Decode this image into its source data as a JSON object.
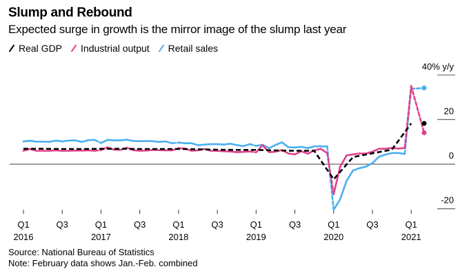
{
  "chart_data": {
    "type": "line",
    "title": "Slump and Rebound",
    "subtitle": "Expected surge in growth is the mirror image of the slump last year",
    "ylabel": "40% y/y",
    "ylim": [
      -20,
      40
    ],
    "yticks": [
      40,
      20,
      0,
      -20
    ],
    "ytick_labels": [
      "40% y/y",
      "20",
      "0",
      "-20"
    ],
    "xticks": [
      {
        "month": 0,
        "q": "Q1",
        "year": "2016"
      },
      {
        "month": 6,
        "q": "Q3",
        "year": ""
      },
      {
        "month": 12,
        "q": "Q1",
        "year": "2017"
      },
      {
        "month": 18,
        "q": "Q3",
        "year": ""
      },
      {
        "month": 24,
        "q": "Q1",
        "year": "2018"
      },
      {
        "month": 30,
        "q": "Q3",
        "year": ""
      },
      {
        "month": 36,
        "q": "Q1",
        "year": "2019"
      },
      {
        "month": 42,
        "q": "Q3",
        "year": ""
      },
      {
        "month": 48,
        "q": "Q1",
        "year": "2020"
      },
      {
        "month": 54,
        "q": "Q3",
        "year": ""
      },
      {
        "month": 60,
        "q": "Q1",
        "year": "2021"
      }
    ],
    "x_unit": "months since Jan 2016",
    "series": [
      {
        "name": "Real GDP",
        "color": "#000000",
        "style": "dashed",
        "x": [
          0,
          3,
          6,
          9,
          12,
          15,
          18,
          21,
          24,
          27,
          30,
          33,
          36,
          39,
          42,
          45,
          48,
          51,
          54,
          57,
          60,
          63
        ],
        "values": [
          6.9,
          6.9,
          6.8,
          6.8,
          6.9,
          6.9,
          6.8,
          6.8,
          6.8,
          6.7,
          6.5,
          6.4,
          6.4,
          6.2,
          6.0,
          6.0,
          -6.8,
          3.2,
          4.9,
          6.5,
          18.3,
          null
        ],
        "end_marker": {
          "x": 62,
          "value": 18.3
        }
      },
      {
        "name": "Industrial output",
        "color": "#e0408a",
        "style": "solid",
        "x": [
          0,
          1,
          2,
          3,
          4,
          5,
          6,
          7,
          8,
          9,
          10,
          11,
          12,
          13,
          14,
          15,
          16,
          17,
          18,
          19,
          20,
          21,
          22,
          23,
          24,
          25,
          26,
          27,
          28,
          29,
          30,
          31,
          32,
          33,
          34,
          35,
          36,
          37,
          38,
          39,
          40,
          41,
          42,
          43,
          44,
          45,
          46,
          47,
          48,
          49,
          50,
          51,
          52,
          53,
          54,
          55,
          56,
          57,
          58,
          59,
          60,
          61,
          62
        ],
        "values": [
          6.0,
          6.8,
          6.0,
          6.0,
          6.0,
          6.2,
          6.0,
          6.0,
          6.1,
          6.1,
          6.2,
          6.0,
          6.3,
          7.6,
          6.5,
          6.4,
          7.4,
          6.3,
          6.0,
          6.1,
          6.4,
          6.3,
          6.2,
          6.2,
          7.2,
          7.0,
          6.0,
          6.2,
          6.8,
          6.0,
          6.0,
          5.8,
          5.7,
          5.4,
          5.5,
          5.7,
          5.3,
          8.5,
          5.4,
          5.6,
          6.3,
          4.8,
          4.4,
          5.8,
          4.7,
          6.2,
          6.9,
          5.0,
          -13.5,
          -1.1,
          3.9,
          4.4,
          4.8,
          4.8,
          5.6,
          6.9,
          6.9,
          7.3,
          7.0,
          7.3,
          35.1,
          null,
          14.1
        ],
        "end_marker": {
          "x": 62,
          "value": 14.1
        }
      },
      {
        "name": "Retail sales",
        "color": "#4aaff0",
        "style": "solid",
        "x": [
          0,
          1,
          2,
          3,
          4,
          5,
          6,
          7,
          8,
          9,
          10,
          11,
          12,
          13,
          14,
          15,
          16,
          17,
          18,
          19,
          20,
          21,
          22,
          23,
          24,
          25,
          26,
          27,
          28,
          29,
          30,
          31,
          32,
          33,
          34,
          35,
          36,
          37,
          38,
          39,
          40,
          41,
          42,
          43,
          44,
          45,
          46,
          47,
          48,
          49,
          50,
          51,
          52,
          53,
          54,
          55,
          56,
          57,
          58,
          59,
          60,
          61,
          62
        ],
        "values": [
          10.2,
          10.5,
          10.1,
          10.1,
          10.0,
          10.6,
          10.2,
          10.6,
          10.7,
          10.0,
          10.8,
          10.9,
          9.5,
          10.9,
          10.7,
          10.7,
          11.0,
          10.4,
          10.3,
          10.4,
          10.3,
          10.0,
          10.2,
          9.4,
          9.7,
          9.4,
          9.4,
          8.5,
          8.8,
          9.0,
          9.0,
          8.8,
          9.2,
          8.6,
          8.1,
          9.0,
          8.2,
          8.7,
          7.2,
          8.6,
          9.8,
          7.6,
          7.5,
          7.8,
          7.2,
          8.0,
          8.0,
          8.0,
          -20.5,
          -15.8,
          -7.5,
          -2.8,
          -1.8,
          -1.1,
          0.5,
          3.3,
          4.3,
          5.0,
          5.0,
          4.6,
          33.8,
          null,
          34.2
        ],
        "end_marker": {
          "x": 62,
          "value": 34.2
        }
      }
    ],
    "dashed_segments_note": "Jan-Feb combined: Feb values connect via dashed segments"
  },
  "header": {
    "title": "Slump and Rebound",
    "subtitle": "Expected surge in growth is the mirror image of the slump last year"
  },
  "legend": [
    {
      "label": "Real GDP",
      "color": "#000000"
    },
    {
      "label": "Industrial output",
      "color": "#e0408a"
    },
    {
      "label": "Retail sales",
      "color": "#4aaff0"
    }
  ],
  "footer": {
    "source": "Source: National Bureau of Statistics",
    "note": "Note: February data shows Jan.-Feb. combined"
  }
}
